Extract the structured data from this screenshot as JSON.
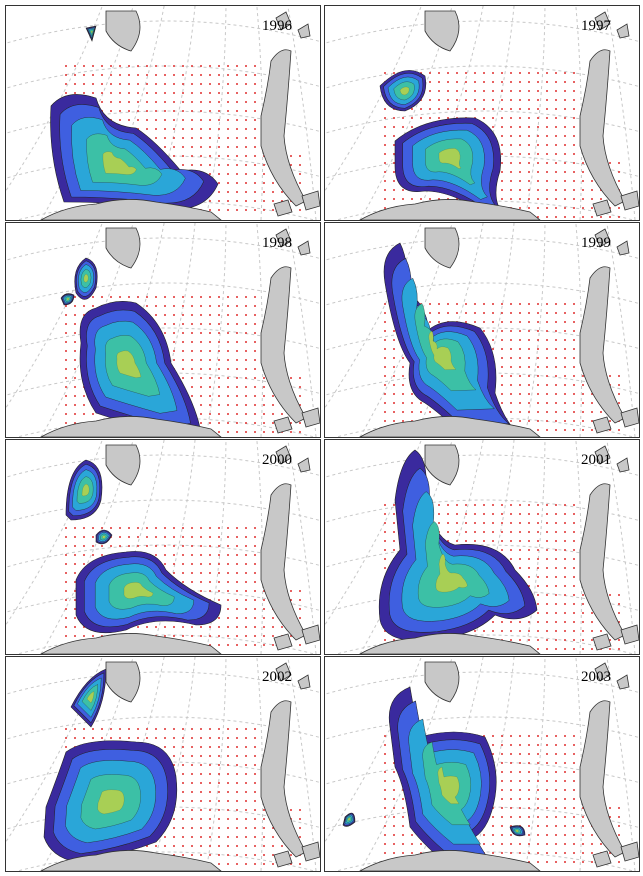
{
  "figure": {
    "panels": [
      {
        "year": "1996"
      },
      {
        "year": "1997"
      },
      {
        "year": "1998"
      },
      {
        "year": "1999"
      },
      {
        "year": "2000"
      },
      {
        "year": "2001"
      },
      {
        "year": "2002"
      },
      {
        "year": "2003"
      }
    ],
    "colors": {
      "level1": "#3a2a9e",
      "level2": "#3f5fe0",
      "level3": "#2aa6d8",
      "level4": "#3cc0a6",
      "level5": "#a8cf55",
      "land": "#c8c8c8",
      "stations": "#e03030",
      "grid": "#c8c8c8"
    }
  }
}
